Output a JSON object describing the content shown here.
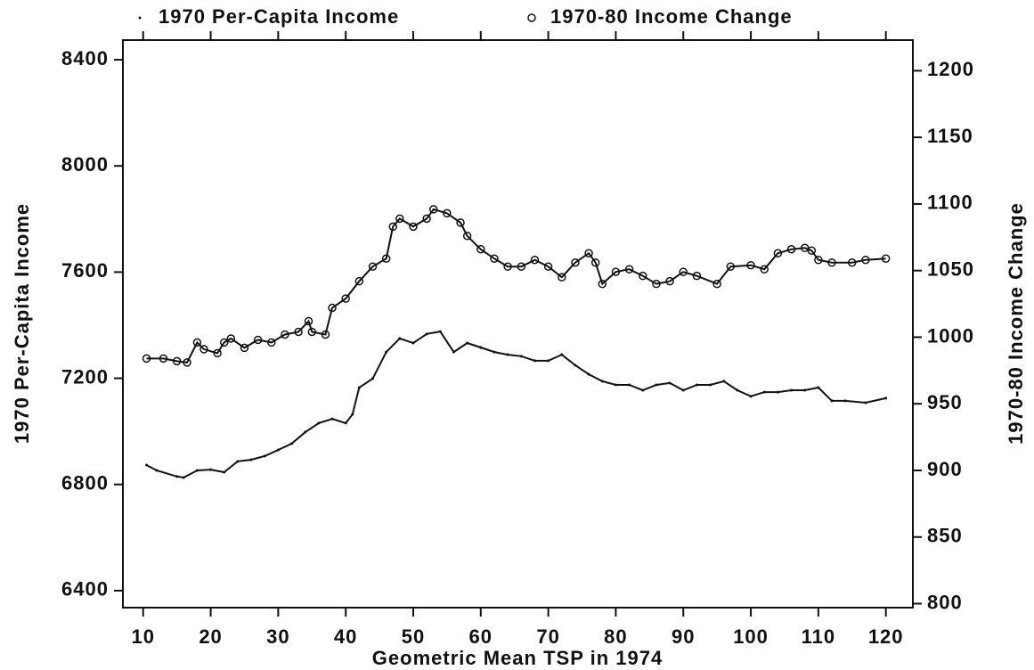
{
  "chart_data": {
    "type": "line",
    "x_label": "Geometric Mean TSP in 1974",
    "y_label": "1970 Per-Capita Income",
    "y2_label": "1970-80 Income Change",
    "xlim": [
      7,
      124
    ],
    "xticks": [
      10,
      20,
      30,
      40,
      50,
      60,
      70,
      80,
      90,
      100,
      110,
      120
    ],
    "ylim": [
      6336,
      8474
    ],
    "yticks": [
      6400,
      6800,
      7200,
      7600,
      8000,
      8400
    ],
    "y2lim": [
      797,
      1223
    ],
    "y2ticks": [
      800,
      850,
      900,
      950,
      1000,
      1050,
      1100,
      1150,
      1200
    ],
    "legend": "top",
    "series": [
      {
        "name": "1970 Per-Capita Income",
        "color": "#111111",
        "marker": "point",
        "axis": "y",
        "x": [
          10.5,
          12,
          15,
          16,
          18,
          20,
          22,
          24,
          26,
          28,
          30,
          32,
          34,
          36,
          38,
          40,
          41,
          42,
          44,
          46,
          48,
          50,
          52,
          54,
          56,
          58,
          60,
          62,
          64,
          66,
          68,
          70,
          72,
          74,
          76,
          78,
          80,
          82,
          84,
          86,
          88,
          90,
          92,
          94,
          96,
          98,
          100,
          102,
          104,
          106,
          108,
          110,
          112,
          114,
          117,
          120
        ],
        "values": [
          6873,
          6853,
          6830,
          6826,
          6853,
          6856,
          6846,
          6887,
          6893,
          6907,
          6930,
          6954,
          6997,
          7031,
          7047,
          7031,
          7064,
          7165,
          7199,
          7299,
          7350,
          7333,
          7367,
          7376,
          7299,
          7333,
          7316,
          7299,
          7289,
          7283,
          7266,
          7266,
          7289,
          7249,
          7215,
          7189,
          7175,
          7175,
          7155,
          7175,
          7182,
          7155,
          7175,
          7175,
          7189,
          7155,
          7132,
          7148,
          7148,
          7155,
          7155,
          7165,
          7115,
          7115,
          7108,
          7125
        ]
      },
      {
        "name": "1970-80 Income Change",
        "color": "#111111",
        "marker": "circle",
        "axis": "y2",
        "x": [
          10.5,
          13,
          15,
          16.5,
          18,
          19,
          21,
          22,
          23,
          25,
          27,
          29,
          31,
          33,
          34.5,
          35,
          37,
          38,
          40,
          42,
          44,
          46,
          47,
          48,
          50,
          52,
          53,
          55,
          57,
          58,
          60,
          62,
          64,
          66,
          68,
          70,
          72,
          74,
          76,
          77,
          78,
          80,
          82,
          84,
          86,
          88,
          90,
          92,
          95,
          97,
          100,
          102,
          104,
          106,
          108,
          109,
          110,
          112,
          115,
          117,
          120
        ],
        "values": [
          984,
          984,
          982,
          981,
          996,
          991,
          988,
          996,
          999,
          992,
          998,
          996,
          1002,
          1004,
          1012,
          1004,
          1002,
          1022,
          1029,
          1042,
          1053,
          1059,
          1083,
          1089,
          1083,
          1089,
          1096,
          1093,
          1086,
          1076,
          1066,
          1059,
          1053,
          1053,
          1058,
          1053,
          1045,
          1056,
          1063,
          1056,
          1040,
          1049,
          1051,
          1046,
          1040,
          1042,
          1049,
          1046,
          1040,
          1053,
          1054,
          1051,
          1063,
          1066,
          1067,
          1065,
          1058,
          1056,
          1056,
          1058,
          1059
        ]
      }
    ]
  }
}
